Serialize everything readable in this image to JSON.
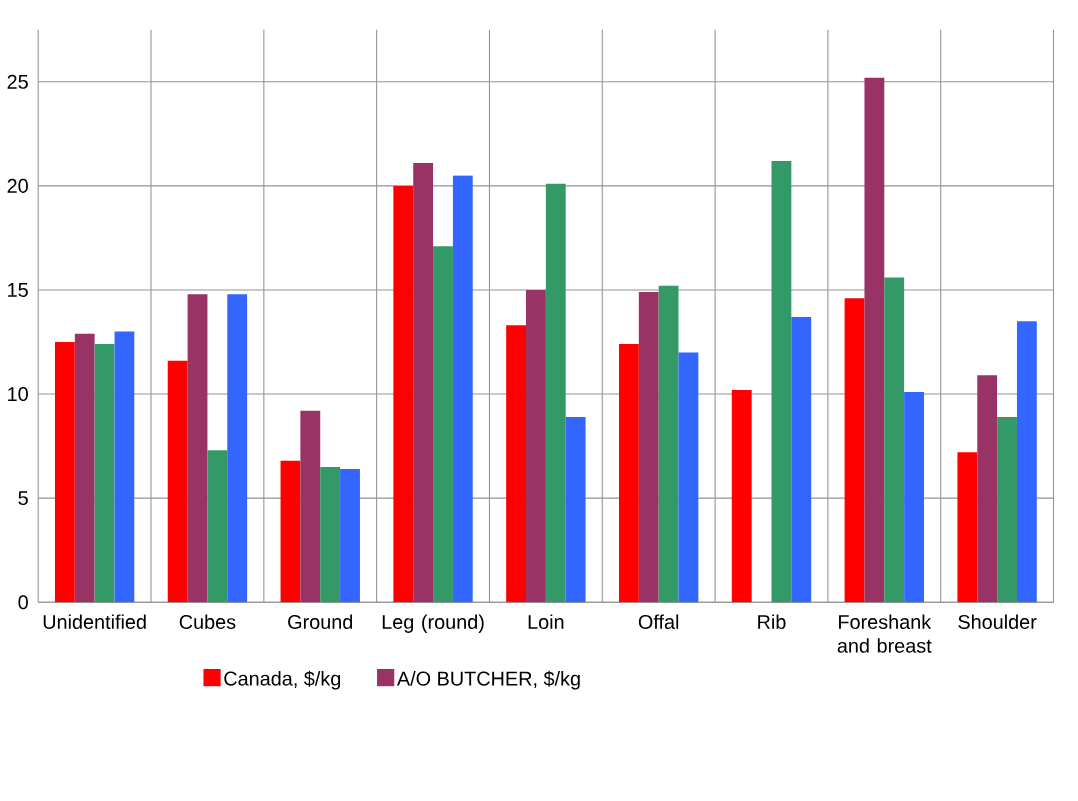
{
  "chart_data": {
    "type": "bar",
    "categories": [
      "Unidentified",
      "Cubes",
      "Ground",
      "Leg (round)",
      "Loin",
      "Offal",
      "Rib",
      "Foreshank and breast",
      "Shoulder"
    ],
    "series": [
      {
        "name": "Canada, $/kg",
        "color": "#ff0000",
        "values": [
          12.5,
          11.6,
          6.8,
          20.0,
          13.3,
          12.4,
          10.2,
          14.6,
          7.2
        ]
      },
      {
        "name": "A/O BUTCHER, $/kg",
        "color": "#993366",
        "values": [
          12.9,
          14.8,
          9.2,
          21.1,
          15.0,
          14.9,
          null,
          25.2,
          10.9
        ]
      },
      {
        "color": "#339966",
        "values": [
          12.4,
          7.3,
          6.5,
          17.1,
          20.1,
          15.2,
          21.2,
          15.6,
          8.9
        ]
      },
      {
        "color": "#3366ff",
        "values": [
          13.0,
          14.8,
          6.4,
          20.5,
          8.9,
          12.0,
          13.7,
          10.1,
          13.5
        ]
      }
    ],
    "ylim": [
      0,
      27.5
    ],
    "yticks": [
      0,
      5,
      10,
      15,
      20,
      25
    ],
    "grid": true,
    "legend": "bottom"
  }
}
